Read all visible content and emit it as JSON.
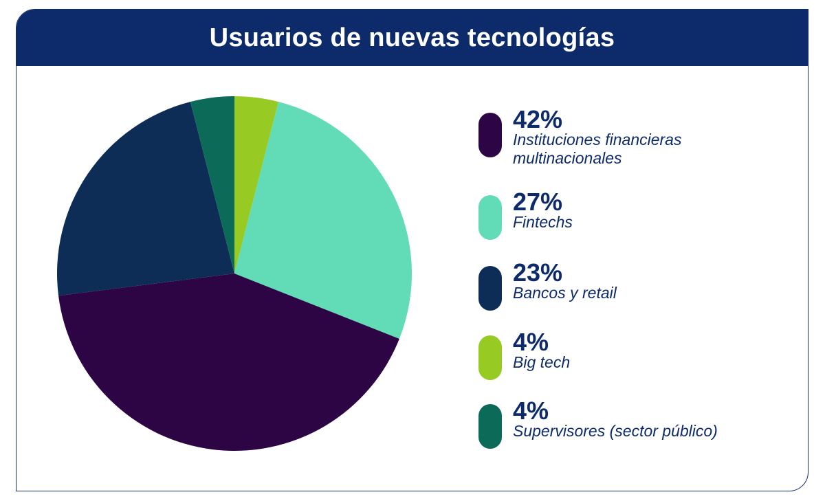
{
  "chart_data": {
    "type": "pie",
    "title": "Usuarios de nuevas tecnologías",
    "slices": [
      {
        "pct_label": "42%",
        "label": "Instituciones financieras multinacionales",
        "value": 42,
        "color": "#2d0545"
      },
      {
        "pct_label": "27%",
        "label": "Fintechs",
        "value": 27,
        "color": "#62dcb7"
      },
      {
        "pct_label": "23%",
        "label": "Bancos y retail",
        "value": 23,
        "color": "#0d2d57"
      },
      {
        "pct_label": "4%",
        "label": "Big tech",
        "value": 4,
        "color": "#97cb23"
      },
      {
        "pct_label": "4%",
        "label": "Supervisores (sector público)",
        "value": 4,
        "color": "#0c6a58"
      }
    ],
    "legend_position": "right",
    "colors": {
      "header": "#0d2b6b",
      "text": "#0d2b6b"
    }
  }
}
